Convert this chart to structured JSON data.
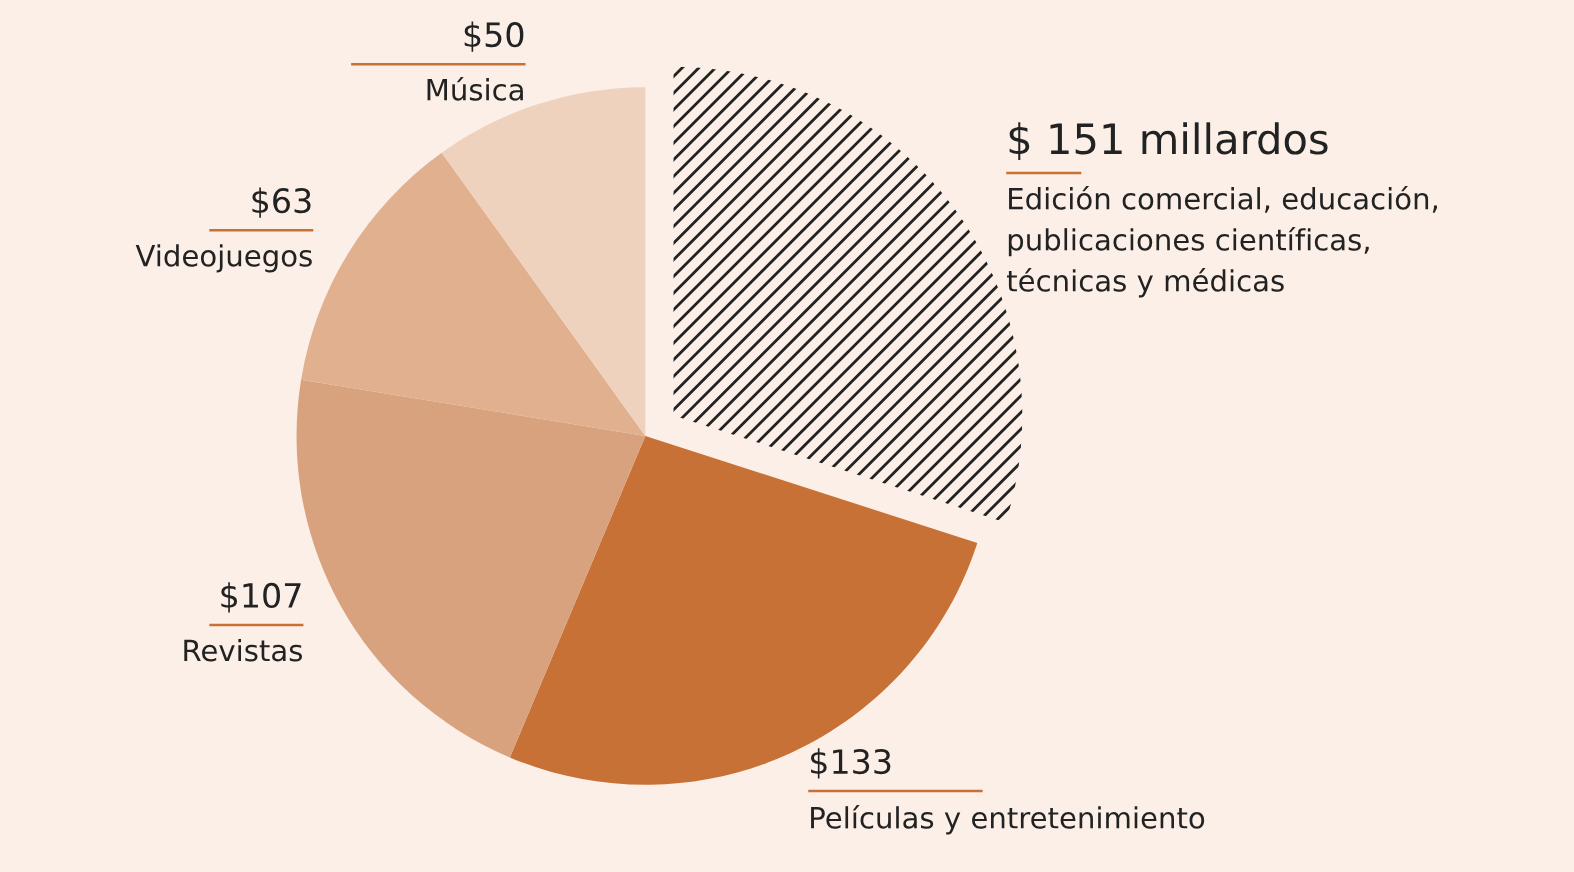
{
  "chart_data": {
    "type": "pie",
    "categories": [
      "Edición comercial, educación,\npublicaciones científicas,\ntécnicas y médicas",
      "Películas y entretenimiento",
      "Revistas",
      "Videojuegos",
      "Música"
    ],
    "values": [
      151,
      133,
      107,
      63,
      50
    ],
    "value_labels": [
      "$ 151 millardos",
      "$133",
      "$107",
      "$63",
      "$50"
    ],
    "colors": [
      null,
      "#c87137",
      "#d9a27e",
      "#e0b08f",
      "#efd2bd"
    ]
  }
}
